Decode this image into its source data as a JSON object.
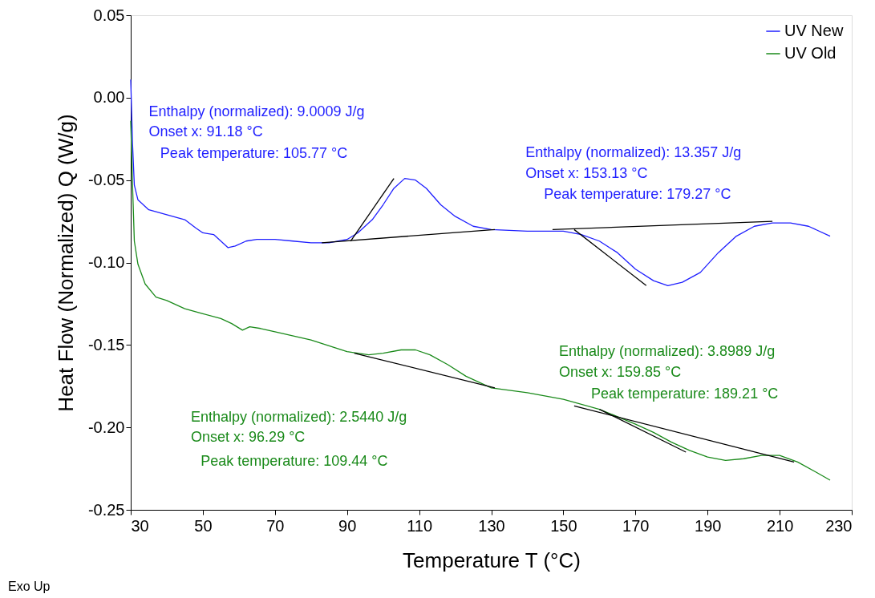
{
  "chart_data": {
    "type": "line",
    "xlabel": "Temperature T (°C)",
    "ylabel": "Heat Flow (Normalized) Q (W/g)",
    "xlim": [
      30,
      230
    ],
    "xticks": [
      30,
      50,
      70,
      90,
      110,
      130,
      150,
      170,
      190,
      210,
      230
    ],
    "ylim": [
      -0.25,
      0.05
    ],
    "yticks": [
      0.05,
      {
        "value": 0,
        "label": "0.00"
      },
      -0.05,
      {
        "value": -0.1,
        "label": "-0.10"
      },
      -0.15,
      {
        "value": -0.2,
        "label": "-0.20"
      },
      -0.25
    ],
    "grid": false,
    "legend": "top right",
    "marker": "none",
    "line_style": "solid",
    "series": [
      {
        "name": "UV New",
        "color": "#1f1fff",
        "x": [
          30,
          30.5,
          31,
          32,
          35,
          40,
          45,
          48,
          50,
          53,
          55,
          57,
          59,
          62,
          65,
          70,
          75,
          80,
          85,
          90,
          93,
          97,
          100,
          103,
          106,
          109,
          112,
          116,
          120,
          125,
          130,
          140,
          150,
          155,
          160,
          165,
          170,
          175,
          179,
          183,
          188,
          193,
          198,
          203,
          208,
          213,
          218,
          224
        ],
        "values": [
          0.011,
          -0.028,
          -0.053,
          -0.062,
          -0.068,
          -0.071,
          -0.074,
          -0.079,
          -0.082,
          -0.083,
          -0.087,
          -0.091,
          -0.09,
          -0.087,
          -0.086,
          -0.086,
          -0.087,
          -0.088,
          -0.088,
          -0.086,
          -0.082,
          -0.074,
          -0.065,
          -0.055,
          -0.049,
          -0.05,
          -0.055,
          -0.065,
          -0.072,
          -0.078,
          -0.08,
          -0.081,
          -0.081,
          -0.083,
          -0.087,
          -0.094,
          -0.104,
          -0.111,
          -0.114,
          -0.112,
          -0.106,
          -0.094,
          -0.084,
          -0.078,
          -0.076,
          -0.076,
          -0.078,
          -0.084
        ]
      },
      {
        "name": "UV Old",
        "color": "#1a8a1a",
        "x": [
          30,
          30.5,
          31,
          32,
          34,
          37,
          40,
          45,
          50,
          55,
          58,
          61,
          63,
          66,
          70,
          80,
          90,
          96,
          100,
          105,
          109,
          113,
          118,
          123,
          130,
          140,
          150,
          160,
          170,
          175,
          180,
          185,
          190,
          195,
          200,
          205,
          210,
          215,
          220,
          224
        ],
        "values": [
          -0.014,
          -0.053,
          -0.087,
          -0.101,
          -0.113,
          -0.121,
          -0.123,
          -0.128,
          -0.131,
          -0.134,
          -0.137,
          -0.141,
          -0.139,
          -0.14,
          -0.142,
          -0.147,
          -0.154,
          -0.156,
          -0.155,
          -0.153,
          -0.153,
          -0.156,
          -0.162,
          -0.169,
          -0.176,
          -0.179,
          -0.183,
          -0.189,
          -0.198,
          -0.203,
          -0.209,
          -0.214,
          -0.218,
          -0.22,
          -0.219,
          -0.217,
          -0.217,
          -0.221,
          -0.227,
          -0.232
        ]
      },
      {
        "color": "#000000",
        "x": [
          83,
          131
        ],
        "values": [
          -0.088,
          -0.08
        ]
      },
      {
        "color": "#000000",
        "x": [
          91,
          103
        ],
        "values": [
          -0.087,
          -0.049
        ]
      },
      {
        "color": "#000000",
        "x": [
          147,
          208
        ],
        "values": [
          -0.08,
          -0.075
        ]
      },
      {
        "color": "#000000",
        "x": [
          153,
          173
        ],
        "values": [
          -0.08,
          -0.114
        ]
      },
      {
        "color": "#000000",
        "x": [
          92,
          131
        ],
        "values": [
          -0.155,
          -0.176
        ]
      },
      {
        "color": "#000000",
        "x": [
          153,
          214
        ],
        "values": [
          -0.187,
          -0.221
        ]
      },
      {
        "color": "#000000",
        "x": [
          160,
          184
        ],
        "values": [
          -0.189,
          -0.215
        ]
      }
    ],
    "annotations": [
      "Enthalpy (normalized): 9.0009 J/g",
      "Onset x: 91.18 °C",
      "Peak temperature: 105.77 °C",
      "Enthalpy (normalized): 13.357 J/g",
      "Onset x: 153.13 °C",
      "Peak temperature: 179.27 °C",
      "Enthalpy (normalized): 3.8989 J/g",
      "Onset x: 159.85 °C",
      "Peak temperature: 189.21 °C",
      "Enthalpy (normalized): 2.5440 J/g",
      "Onset x: 96.29 °C",
      "Peak temperature: 109.44 °C",
      "Exo Up"
    ]
  }
}
